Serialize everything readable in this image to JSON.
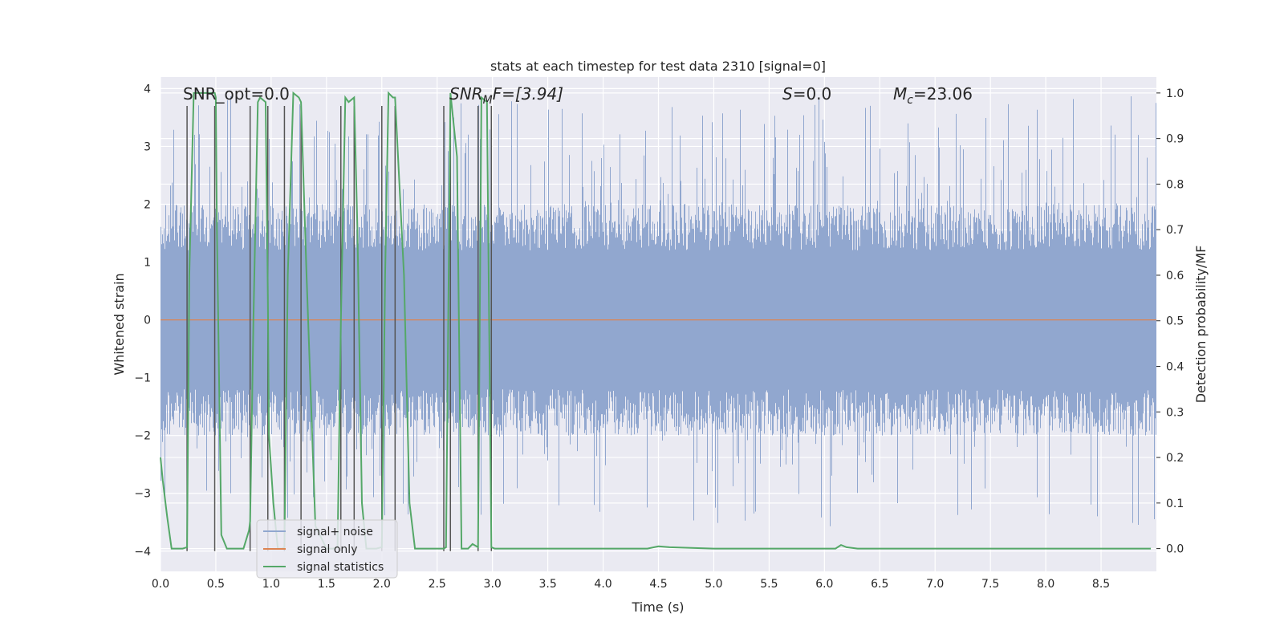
{
  "chart_data": {
    "type": "line",
    "title": "stats at each timestep for test data 2310 [signal=0]",
    "xlabel": "Time (s)",
    "ylabel_left": "Whitened strain",
    "ylabel_right": "Detection probability/MF",
    "xlim": [
      0.0,
      9.0
    ],
    "ylim_left": [
      -4.35,
      4.2
    ],
    "ylim_right": [
      -0.05,
      1.035
    ],
    "x_ticks": [
      "0.0",
      "0.5",
      "1.0",
      "1.5",
      "2.0",
      "2.5",
      "3.0",
      "3.5",
      "4.0",
      "4.5",
      "5.0",
      "5.5",
      "6.0",
      "6.5",
      "7.0",
      "7.5",
      "8.0",
      "8.5"
    ],
    "y_left_ticks": [
      "4",
      "3",
      "2",
      "1",
      "0",
      "−1",
      "−2",
      "−3",
      "−4"
    ],
    "y_right_ticks": [
      "1.0",
      "0.9",
      "0.8",
      "0.7",
      "0.6",
      "0.5",
      "0.4",
      "0.3",
      "0.2",
      "0.1",
      "0.0"
    ],
    "grid": true,
    "annotations": {
      "snr_opt": "SNR_opt=0.0",
      "snr_mf": "SNR",
      "snr_mf_sub": "M",
      "snr_mf_rest": "F=[3.94]",
      "s": "S",
      "s_rest": "=0.0",
      "mc": "M",
      "mc_sub": "c",
      "mc_rest": "=23.06"
    },
    "legend": {
      "position": "lower-left",
      "entries": [
        "signal+ noise",
        "signal only",
        "signal statistics"
      ]
    },
    "colors": {
      "noise": "#91a7cf",
      "signal": "#dd8452",
      "stats": "#55a868",
      "vlines": "#555555",
      "background": "#eaeaf2"
    },
    "noise_envelope": {
      "core_amplitude": 1.6,
      "spike_peak_max": 3.9,
      "spike_trough_min": -3.6
    },
    "signal_only": {
      "value": 0.0
    },
    "vlines_x": [
      0.24,
      0.49,
      0.81,
      0.97,
      1.12,
      1.27,
      1.63,
      1.75,
      2.0,
      2.12,
      2.56,
      2.62,
      2.87,
      2.99
    ],
    "vline_range": [
      -4.0,
      3.7
    ],
    "signal_statistics": {
      "x": [
        0.0,
        0.02,
        0.06,
        0.1,
        0.15,
        0.2,
        0.24,
        0.26,
        0.3,
        0.35,
        0.4,
        0.45,
        0.49,
        0.5,
        0.51,
        0.55,
        0.6,
        0.65,
        0.7,
        0.75,
        0.8,
        0.81,
        0.84,
        0.88,
        0.9,
        0.95,
        0.97,
        0.98,
        1.02,
        1.06,
        1.1,
        1.12,
        1.15,
        1.2,
        1.25,
        1.27,
        1.32,
        1.4,
        1.5,
        1.56,
        1.6,
        1.63,
        1.67,
        1.7,
        1.75,
        1.78,
        1.82,
        1.86,
        1.9,
        1.95,
        2.0,
        2.03,
        2.06,
        2.1,
        2.12,
        2.2,
        2.25,
        2.3,
        2.4,
        2.5,
        2.56,
        2.58,
        2.62,
        2.68,
        2.72,
        2.78,
        2.82,
        2.87,
        2.9,
        2.95,
        2.99,
        3.02,
        3.06,
        3.1,
        3.2,
        3.5,
        4.0,
        4.4,
        4.5,
        4.6,
        5.0,
        5.5,
        6.0,
        6.1,
        6.15,
        6.2,
        6.3,
        7.0,
        8.0,
        8.95
      ],
      "y": [
        0.2,
        0.15,
        0.07,
        0.0,
        0.0,
        0.0,
        0.003,
        0.6,
        1.0,
        1.0,
        1.0,
        1.0,
        1.0,
        0.99,
        0.7,
        0.03,
        0.0,
        0.0,
        0.0,
        0.0,
        0.04,
        0.06,
        0.5,
        0.98,
        0.99,
        0.98,
        0.55,
        0.25,
        0.1,
        0.0,
        0.0,
        0.003,
        0.6,
        1.0,
        0.99,
        0.98,
        0.6,
        0.05,
        0.0,
        0.0,
        0.003,
        0.5,
        0.99,
        0.98,
        0.99,
        0.7,
        0.1,
        0.0,
        0.0,
        0.0,
        0.003,
        0.6,
        1.0,
        0.99,
        0.99,
        0.6,
        0.1,
        0.0,
        0.0,
        0.0,
        0.0,
        0.003,
        1.0,
        0.86,
        0.0,
        0.0,
        0.01,
        0.003,
        0.99,
        0.98,
        0.003,
        0.0,
        0.0,
        0.0,
        0.0,
        0.0,
        0.0,
        0.0,
        0.005,
        0.003,
        0.0,
        0.0,
        0.0,
        0.0,
        0.008,
        0.003,
        0.0,
        0.0,
        0.0,
        0.0
      ]
    }
  }
}
